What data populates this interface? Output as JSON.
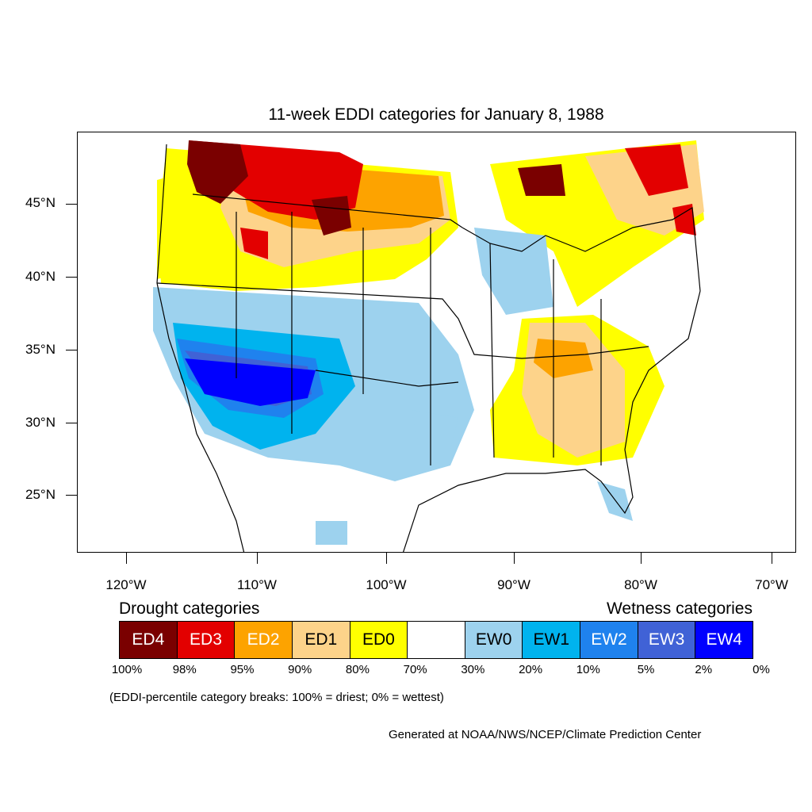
{
  "title": "11-week EDDI categories for January 8, 1988",
  "lat_labels": [
    "45°N",
    "40°N",
    "35°N",
    "30°N",
    "25°N"
  ],
  "lon_labels": [
    "120°W",
    "110°W",
    "100°W",
    "90°W",
    "80°W",
    "70°W"
  ],
  "legend": {
    "drought_heading": "Drought categories",
    "wetness_heading": "Wetness categories",
    "categories": [
      {
        "label": "ED4",
        "color": "#7a0000",
        "text_color": "#ffffff"
      },
      {
        "label": "ED3",
        "color": "#e30000",
        "text_color": "#ffffff"
      },
      {
        "label": "ED2",
        "color": "#fda300",
        "text_color": "#ffffff"
      },
      {
        "label": "ED1",
        "color": "#fdd38a",
        "text_color": "#000000"
      },
      {
        "label": "ED0",
        "color": "#ffff00",
        "text_color": "#000000"
      },
      {
        "label": "",
        "color": "#ffffff",
        "text_color": "#000000"
      },
      {
        "label": "EW0",
        "color": "#9dd2ee",
        "text_color": "#000000"
      },
      {
        "label": "EW1",
        "color": "#00b3ee",
        "text_color": "#000000"
      },
      {
        "label": "EW2",
        "color": "#1f82ee",
        "text_color": "#ffffff"
      },
      {
        "label": "EW3",
        "color": "#4062d6",
        "text_color": "#ffffff"
      },
      {
        "label": "EW4",
        "color": "#0000ff",
        "text_color": "#ffffff"
      }
    ],
    "percent_breaks": [
      "100%",
      "98%",
      "95%",
      "90%",
      "80%",
      "70%",
      "30%",
      "20%",
      "10%",
      "5%",
      "2%",
      "0%"
    ]
  },
  "note": "(EDDI-percentile category breaks: 100% = driest; 0% = wettest)",
  "credit": "Generated at NOAA/NWS/NCEP/Climate Prediction Center"
}
